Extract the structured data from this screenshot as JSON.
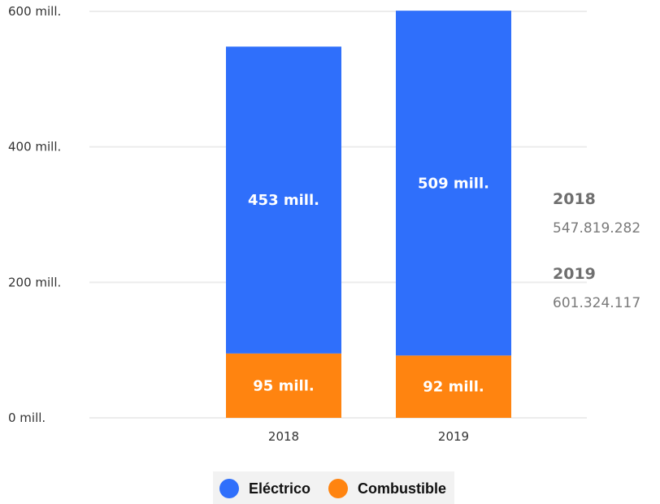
{
  "chart_data": {
    "type": "bar",
    "stacked": true,
    "categories": [
      "2018",
      "2019"
    ],
    "series": [
      {
        "name": "Eléctrico",
        "values": [
          453,
          509
        ],
        "labels": [
          "453 mill.",
          "509 mill."
        ],
        "color": "#2f6ffb"
      },
      {
        "name": "Combustible",
        "values": [
          95,
          92
        ],
        "labels": [
          "95 mill.",
          "92 mill."
        ],
        "color": "#ff8410"
      }
    ],
    "ylim": [
      0,
      600
    ],
    "yticks": [
      0,
      200,
      400,
      600
    ],
    "ytick_labels": [
      "0 mill.",
      "200 mill.",
      "400 mill.",
      "600 mill."
    ],
    "grid": true,
    "legend_position": "bottom"
  },
  "totals": [
    {
      "year": "2018",
      "value": "547.819.282"
    },
    {
      "year": "2019",
      "value": "601.324.117"
    }
  ]
}
